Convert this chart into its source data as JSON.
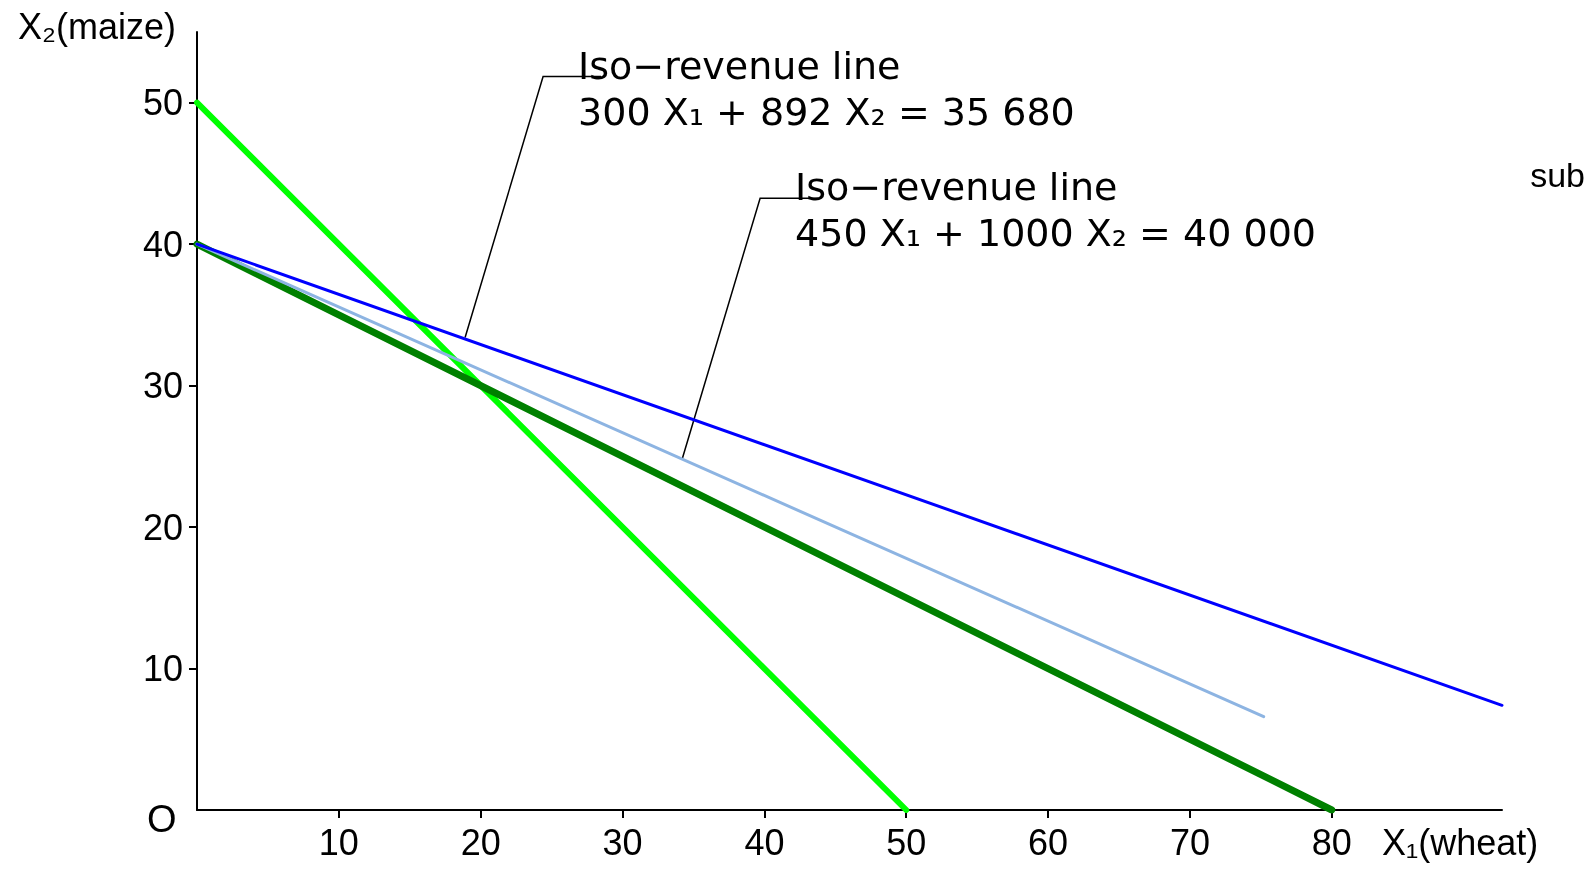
{
  "chart_data": {
    "type": "line",
    "xlabel": "X₁(wheat)",
    "ylabel": "X₂(maize)",
    "xlim": [
      0,
      92
    ],
    "ylim": [
      0,
      55
    ],
    "xticks": [
      10,
      20,
      30,
      40,
      50,
      60,
      70,
      80
    ],
    "yticks": [
      10,
      20,
      30,
      40,
      50
    ],
    "grid": false,
    "marker": "none",
    "line_style": "solid",
    "series": [
      {
        "x": [
          0,
          92
        ],
        "values": [
          40,
          7.4
        ],
        "color": "#0000ff"
      },
      {
        "x": [
          0,
          75.2
        ],
        "values": [
          40,
          6.6
        ],
        "color": "#8db4e2"
      },
      {
        "x": [
          0,
          80
        ],
        "values": [
          40,
          0
        ],
        "color": "#008000"
      },
      {
        "x": [
          0,
          50
        ],
        "values": [
          50,
          0
        ],
        "color": "#00ff00"
      }
    ],
    "annotations": [
      {
        "text": "Iso−revenue line\n300 X₁ + 892 X₂ = 35 680",
        "x": 18.9,
        "y": 33.4
      },
      {
        "text": "Iso−revenue line\n450 X₁ + 1000 X₂ = 40 000",
        "x": 34.2,
        "y": 24.8
      },
      "O",
      "sub"
    ]
  }
}
